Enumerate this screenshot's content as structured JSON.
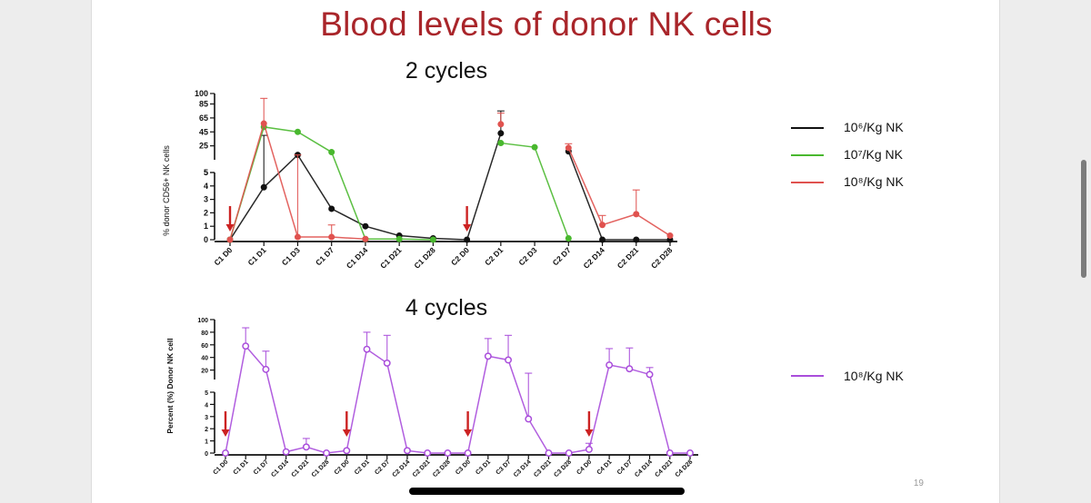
{
  "slide": {
    "title": "Blood levels of donor NK cells",
    "page_number": "19"
  },
  "colors": {
    "title": "#a9252a",
    "black_series": "#111111",
    "green_series": "#49b82e",
    "red_series": "#e0524f",
    "purple_series": "#a94ddb",
    "arrow": "#cc2222"
  },
  "chart_data": [
    {
      "type": "line",
      "title": "2 cycles",
      "ylabel": "% donor CD56+ NK cells",
      "categories": [
        "C1 D0",
        "C1 D1",
        "C1 D3",
        "C1 D7",
        "C1 D14",
        "C1 D21",
        "C1 D28",
        "C2 D0",
        "C2 D1",
        "C2 D3",
        "C2 D7",
        "C2 D14",
        "C2 D21",
        "C2 D28"
      ],
      "y_axis": {
        "type": "split",
        "lower": {
          "range": [
            0,
            5
          ],
          "ticks": [
            "0",
            "1",
            "2",
            "3",
            "4",
            "5"
          ]
        },
        "upper": {
          "range": [
            5,
            100
          ],
          "ticks": [
            "5",
            "25",
            "45",
            "65",
            "85",
            "100"
          ]
        }
      },
      "series": [
        {
          "name": "10⁶/Kg NK",
          "color_key": "black_series",
          "values": [
            0,
            3.9,
            12,
            2.3,
            1.0,
            0.3,
            0.1,
            0,
            43,
            null,
            17,
            0,
            0,
            0
          ],
          "error": [
            null,
            40,
            null,
            null,
            null,
            null,
            null,
            null,
            75,
            null,
            null,
            null,
            null,
            null
          ]
        },
        {
          "name": "10⁷/Kg NK",
          "color_key": "green_series",
          "values": [
            0,
            52,
            45,
            16,
            0.05,
            0.05,
            0,
            null,
            29,
            23,
            0.1,
            null,
            null,
            null
          ],
          "error": [
            null,
            null,
            null,
            null,
            null,
            null,
            null,
            null,
            null,
            null,
            null,
            null,
            null,
            null
          ]
        },
        {
          "name": "10⁸/Kg NK",
          "color_key": "red_series",
          "values": [
            0,
            57,
            0.2,
            0.2,
            0.05,
            null,
            null,
            null,
            56,
            null,
            22,
            1.1,
            1.9,
            0.3
          ],
          "error": [
            null,
            93,
            12,
            1.1,
            null,
            null,
            null,
            null,
            72,
            null,
            28,
            1.8,
            3.7,
            null
          ]
        }
      ],
      "arrows_at": [
        "C1 D0",
        "C2 D0"
      ]
    },
    {
      "type": "line",
      "title": "4 cycles",
      "ylabel": "Percent (%) Donor NK cell",
      "categories": [
        "C1 D0",
        "C1 D1",
        "C1 D7",
        "C1 D14",
        "C1 D21",
        "C1 D28",
        "C2 D0",
        "C2 D1",
        "C2 D7",
        "C2 D14",
        "C2 D21",
        "C2 D28",
        "C3 D0",
        "C3 D1",
        "C3 D7",
        "C3 D14",
        "C3 D21",
        "C3 D28",
        "C4 D0",
        "C4 D1",
        "C4 D7",
        "C4 D14",
        "C4 D21",
        "C4 D28"
      ],
      "y_axis": {
        "type": "split",
        "lower": {
          "range": [
            0,
            5
          ],
          "ticks": [
            "0",
            "1",
            "2",
            "3",
            "4",
            "5"
          ]
        },
        "upper": {
          "range": [
            5,
            100
          ],
          "ticks": [
            "20",
            "40",
            "60",
            "80",
            "100"
          ]
        }
      },
      "series": [
        {
          "name": "10⁸/Kg NK",
          "color_key": "purple_series",
          "values": [
            0,
            58,
            21,
            0.1,
            0.5,
            0,
            0.2,
            53,
            31,
            0.2,
            0,
            0,
            0,
            42,
            36,
            2.8,
            0,
            0,
            0.3,
            28,
            22,
            13,
            0,
            0
          ],
          "error": [
            null,
            87,
            50,
            null,
            1.2,
            null,
            null,
            80,
            75,
            null,
            null,
            null,
            null,
            70,
            75,
            15,
            null,
            null,
            0.8,
            54,
            55,
            24,
            null,
            null
          ]
        }
      ],
      "arrows_at": [
        "C1 D0",
        "C2 D0",
        "C3 D0",
        "C4 D0"
      ]
    }
  ]
}
